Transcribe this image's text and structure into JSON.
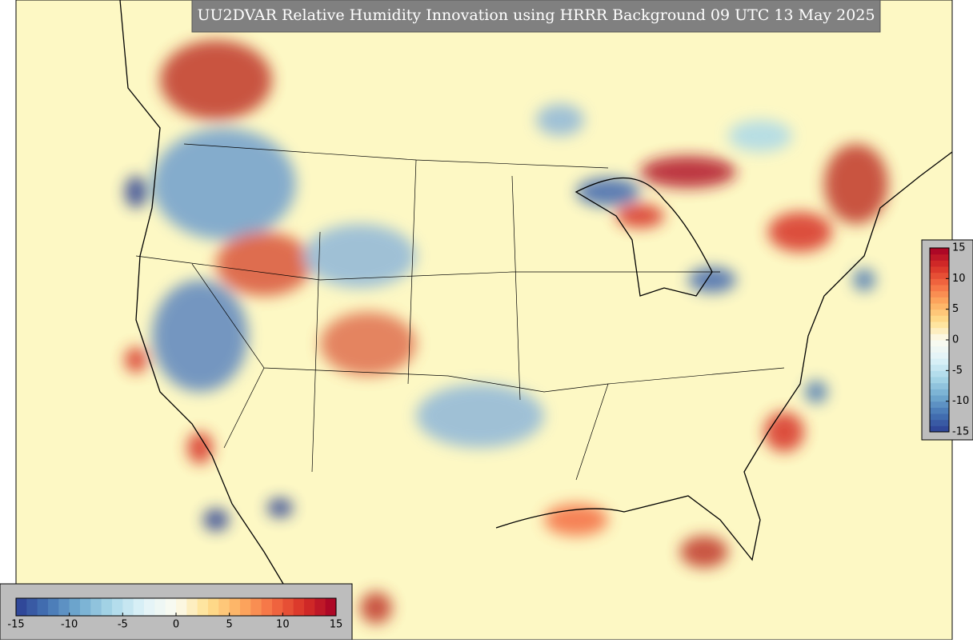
{
  "title": "UU2DVAR Relative Humidity Innovation using HRRR Background 09 UTC 13 May 2025",
  "colormap": [
    "#2c3f93",
    "#4575b4",
    "#74add1",
    "#abd9e9",
    "#e0f3f8",
    "#fbfbf0",
    "#fee090",
    "#fdae61",
    "#f46d43",
    "#d73027",
    "#a50026"
  ],
  "colorbars": [
    {
      "orientation": "horizontal",
      "range": [
        -15,
        15
      ],
      "ticks": [
        -15,
        -10,
        -5,
        0,
        5,
        10,
        15
      ]
    },
    {
      "orientation": "vertical",
      "range": [
        -15,
        15
      ],
      "ticks": [
        -15,
        -10,
        -5,
        0,
        5,
        10,
        15
      ]
    }
  ]
}
